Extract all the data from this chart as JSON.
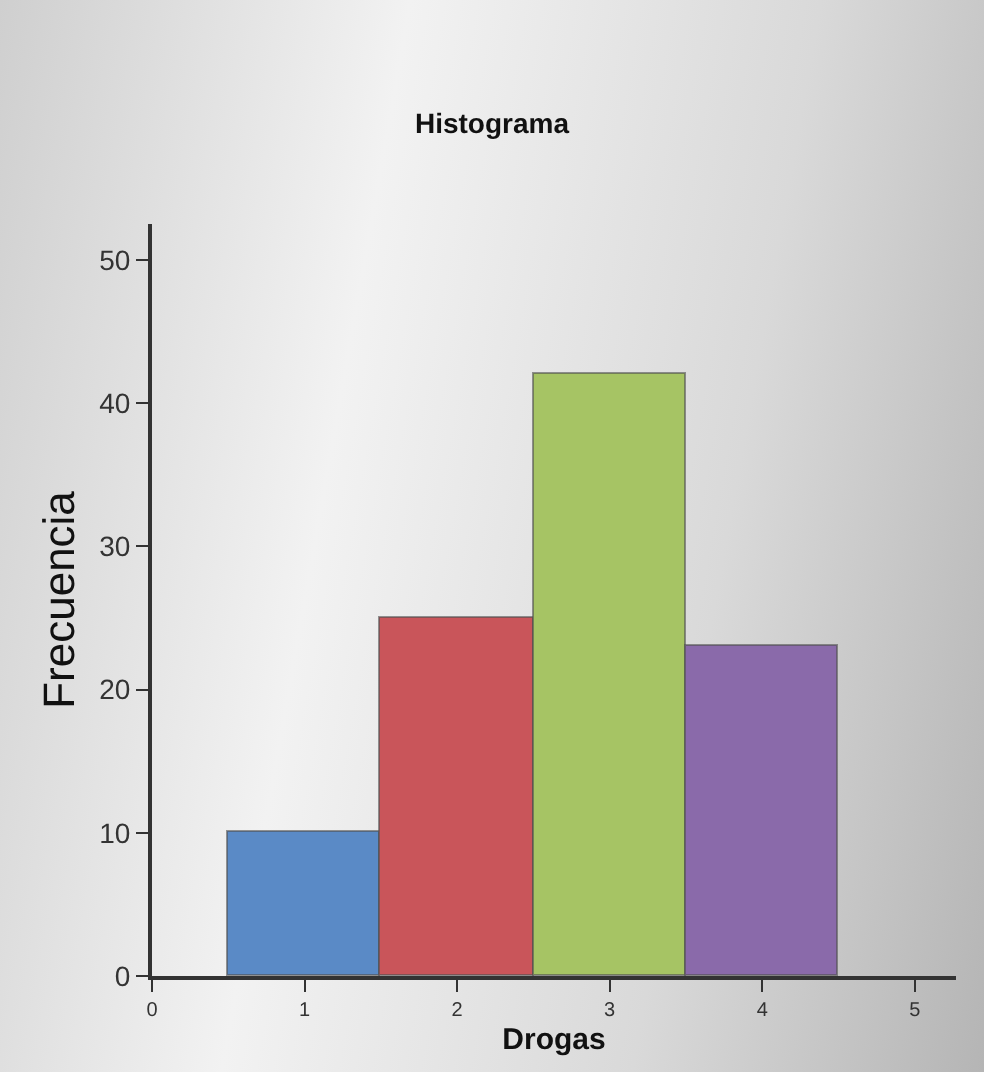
{
  "chart_data": {
    "type": "histogram",
    "title": "Histograma",
    "xlabel": "Drogas",
    "ylabel": "Frecuencia",
    "bins": [
      0.5,
      1.5,
      2.5,
      3.5,
      4.5
    ],
    "values": [
      10,
      25,
      42,
      23
    ],
    "colors": [
      "#5a8ac6",
      "#c9555a",
      "#a6c464",
      "#8a6aaa"
    ],
    "xlim": [
      0,
      5.27
    ],
    "xticks": [
      0,
      1,
      2,
      3,
      4,
      5
    ],
    "ylim": [
      0,
      52.5
    ],
    "yticks": [
      0,
      10,
      20,
      30,
      40,
      50
    ],
    "grid": false
  }
}
